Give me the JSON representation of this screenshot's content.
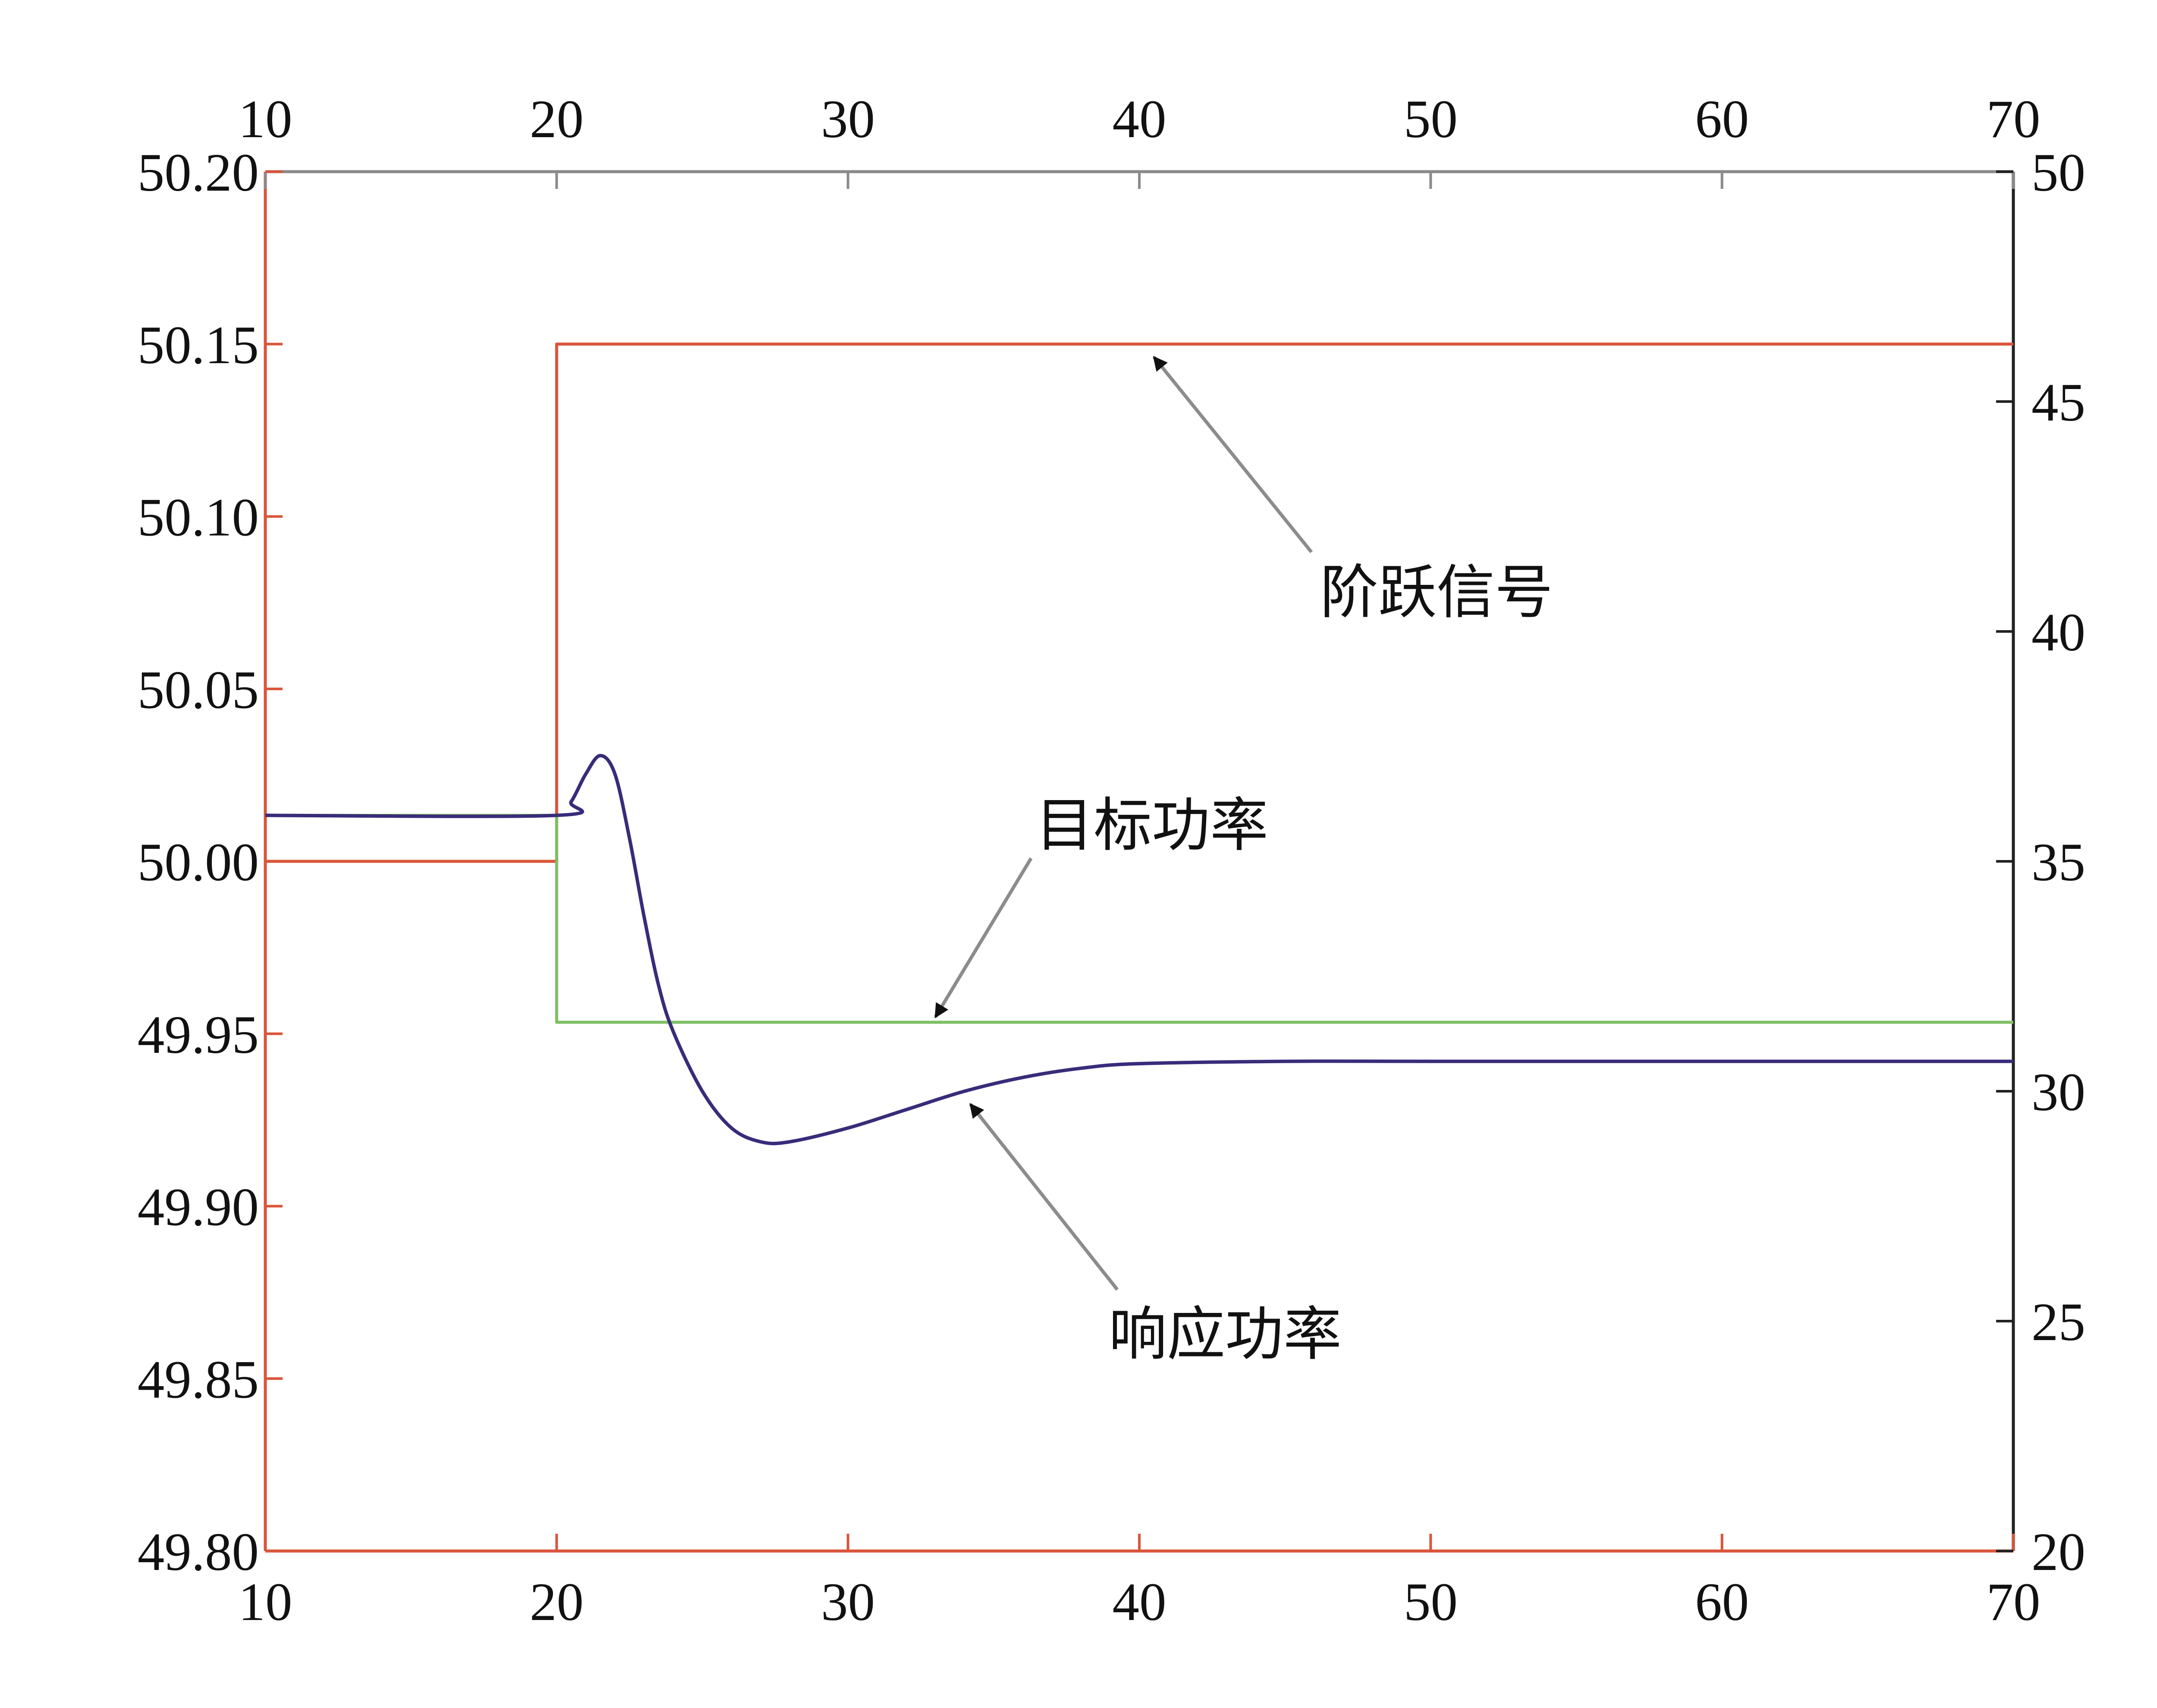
{
  "chart_data": {
    "type": "line",
    "title": "",
    "xlabel": "",
    "ylabel": "",
    "y2label": "",
    "x_ticks": [
      "10",
      "20",
      "30",
      "40",
      "50",
      "60",
      "70"
    ],
    "y_left_ticks": [
      "50.20",
      "50.15",
      "50.10",
      "50.05",
      "50.00",
      "49.95",
      "49.90",
      "49.85",
      "49.80"
    ],
    "y_right_ticks": [
      "50",
      "45",
      "40",
      "35",
      "30",
      "25",
      "20"
    ],
    "xlim": [
      10,
      70
    ],
    "ylim": [
      49.8,
      50.2
    ],
    "y2lim": [
      20,
      50
    ],
    "grid": false,
    "colors": {
      "axis_box": "#8a8a8a",
      "left_axis": "#d9553a",
      "right_axis": "#222222",
      "step": "#d9553a",
      "target": "#7fbf66",
      "response": "#3a2b7a",
      "arrow": "#8c8c8c"
    },
    "series": [
      {
        "key": "step",
        "axis": "left",
        "x": [
          10,
          20,
          20,
          70
        ],
        "y": [
          50.0,
          50.0,
          50.15,
          50.15
        ]
      },
      {
        "key": "target",
        "axis": "right",
        "x": [
          10,
          20,
          20,
          70
        ],
        "y": [
          36.0,
          36.0,
          31.5,
          31.5
        ]
      },
      {
        "key": "response",
        "axis": "right",
        "x": [
          10,
          20,
          20.5,
          21.0,
          21.5,
          22.0,
          22.5,
          23.0,
          23.5,
          24.0,
          25.0,
          26.0,
          27.0,
          28.0,
          30.0,
          32.0,
          34.0,
          36.0,
          38.0,
          40.0,
          45.0,
          50.0,
          60.0,
          70.0
        ],
        "y": [
          36.0,
          36.0,
          36.3,
          36.9,
          37.3,
          36.9,
          35.5,
          33.8,
          32.3,
          31.3,
          30.0,
          29.2,
          28.9,
          28.9,
          29.2,
          29.6,
          30.0,
          30.3,
          30.5,
          30.6,
          30.65,
          30.65,
          30.65,
          30.65
        ]
      }
    ],
    "annotations": [
      {
        "key": "step",
        "text": "阶跃信号",
        "points_to": [
          40.5,
          50.15
        ],
        "axis": "left"
      },
      {
        "key": "target",
        "text": "目标功率",
        "points_to": [
          33,
          31.5
        ],
        "axis": "right"
      },
      {
        "key": "response",
        "text": "响应功率",
        "points_to": [
          34.2,
          30.0
        ],
        "axis": "right"
      }
    ]
  }
}
